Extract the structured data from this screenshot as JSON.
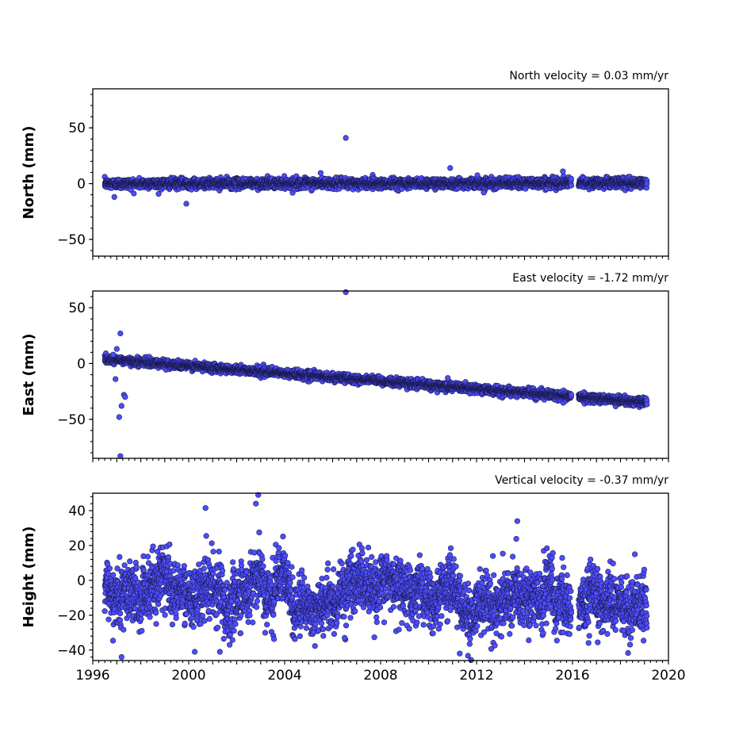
{
  "chart_data": [
    {
      "type": "scatter",
      "title": "North velocity = 0.03 mm/yr",
      "ylabel": "North (mm)",
      "xlim": [
        1996,
        2020
      ],
      "ylim": [
        -65,
        85
      ],
      "yticks": [
        -50,
        0,
        50
      ],
      "ytick_labels": [
        "−50",
        "0",
        "50"
      ],
      "series": [
        {
          "velocity_mm_per_yr": 0.03,
          "start_year": 1996.5,
          "end_year": 2019.1,
          "offset_mm": 0,
          "scatter_sd_mm": 2.2,
          "gaps": [
            [
              2015.95,
              2016.25
            ]
          ],
          "outliers": [
            [
              2006.55,
              41
            ],
            [
              1999.9,
              -18
            ],
            [
              2010.9,
              14
            ],
            [
              1996.9,
              -12
            ],
            [
              2005.5,
              9.5
            ],
            [
              2012.3,
              -8
            ],
            [
              2015.6,
              11
            ]
          ]
        }
      ]
    },
    {
      "type": "scatter",
      "title": "East velocity = -1.72 mm/yr",
      "ylabel": "East (mm)",
      "xlim": [
        1996,
        2020
      ],
      "ylim": [
        -85,
        65
      ],
      "yticks": [
        -50,
        0,
        50
      ],
      "ytick_labels": [
        "−50",
        "0",
        "50"
      ],
      "series": [
        {
          "velocity_mm_per_yr": -1.72,
          "start_year": 1996.5,
          "end_year": 2019.1,
          "offset_mm": 4,
          "scatter_sd_mm": 1.8,
          "gaps": [
            [
              2015.95,
              2016.25
            ]
          ],
          "outliers": [
            [
              2006.55,
              64
            ],
            [
              1997.15,
              27
            ],
            [
              1997.0,
              13
            ],
            [
              1997.1,
              -48
            ],
            [
              1997.2,
              -38
            ],
            [
              1997.15,
              -83
            ],
            [
              1997.3,
              -28
            ],
            [
              1996.95,
              -14
            ],
            [
              1997.35,
              -30
            ],
            [
              1996.85,
              8
            ],
            [
              2010.8,
              -13
            ]
          ]
        }
      ]
    },
    {
      "type": "scatter",
      "title": "Vertical velocity = -0.37 mm/yr",
      "ylabel": "Height (mm)",
      "xlabel": "",
      "xlim": [
        1996,
        2020
      ],
      "ylim": [
        -46,
        50
      ],
      "yticks": [
        -40,
        -20,
        0,
        20,
        40
      ],
      "ytick_labels": [
        "−40",
        "−20",
        "0",
        "20",
        "40"
      ],
      "series": [
        {
          "velocity_mm_per_yr": -0.37,
          "start_year": 1996.5,
          "end_year": 2019.1,
          "offset_mm": 0,
          "scatter_sd_mm": 11,
          "gaps": [
            [
              2015.95,
              2016.25
            ]
          ],
          "outliers": [
            [
              2002.9,
              49
            ],
            [
              2000.7,
              41.5
            ],
            [
              1997.2,
              -44
            ],
            [
              2011.3,
              -42
            ],
            [
              2000.25,
              -41
            ],
            [
              2001.3,
              -41
            ],
            [
              2013.7,
              34
            ],
            [
              2002.8,
              44
            ],
            [
              2006.5,
              -33
            ]
          ]
        }
      ]
    }
  ],
  "xaxis": {
    "min": 1996,
    "max": 2020,
    "ticks": [
      1996,
      2000,
      2004,
      2008,
      2012,
      2016,
      2020
    ],
    "tick_labels": [
      "1996",
      "2000",
      "2004",
      "2008",
      "2012",
      "2016",
      "2020"
    ],
    "minor_tick_years": 0.25
  },
  "colors": {
    "point_fill": "#4d4dff",
    "point_edge": "#1a1a4d"
  }
}
